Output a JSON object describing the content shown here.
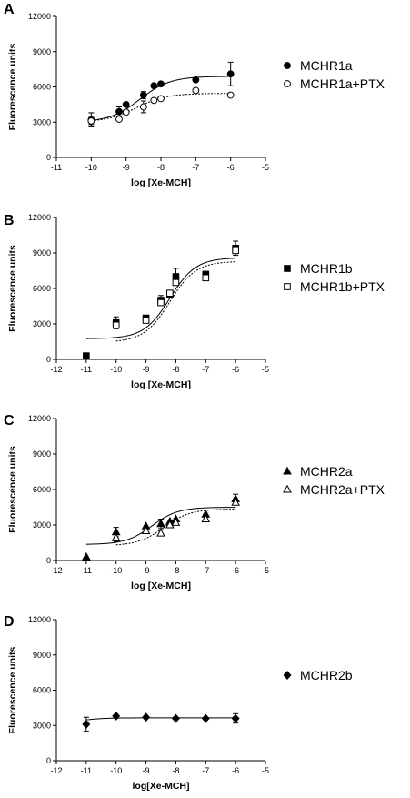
{
  "panels": [
    {
      "letter": "A",
      "chart_data": {
        "type": "scatter",
        "xlabel": "log [Xe-MCH]",
        "ylabel": "Fluorescence units",
        "xlim": [
          -11,
          -5
        ],
        "ylim": [
          0,
          12000
        ],
        "xticks": [
          -11,
          -10,
          -9,
          -8,
          -7,
          -6,
          -5
        ],
        "yticks": [
          0,
          3000,
          6000,
          9000,
          12000
        ],
        "grid": false,
        "legend_position": "right",
        "series": [
          {
            "name": "MCHR1a",
            "marker": "circle-filled",
            "line": "solid",
            "x": [
              -10,
              -9.2,
              -9,
              -8.5,
              -8.2,
              -8,
              -7,
              -6
            ],
            "y": [
              3200,
              3900,
              4500,
              5300,
              6100,
              6250,
              6600,
              7100
            ],
            "err": [
              600,
              400,
              0,
              300,
              0,
              0,
              0,
              1000
            ],
            "fit": {
              "bottom": 3000,
              "top": 6900,
              "logec50": -8.6
            }
          },
          {
            "name": "MCHR1a+PTX",
            "marker": "circle-open",
            "line": "dotted",
            "x": [
              -10,
              -9.2,
              -9,
              -8.5,
              -8.2,
              -8,
              -7,
              -6
            ],
            "y": [
              3100,
              3250,
              3850,
              4300,
              4850,
              5000,
              5700,
              5300
            ],
            "err": [
              300,
              0,
              0,
              500,
              0,
              0,
              0,
              0
            ],
            "fit": {
              "bottom": 3000,
              "top": 5450,
              "logec50": -8.7
            }
          }
        ]
      }
    },
    {
      "letter": "B",
      "chart_data": {
        "type": "scatter",
        "xlabel": "log [Xe-MCH]",
        "ylabel": "Fluorescence units",
        "xlim": [
          -12,
          -5
        ],
        "ylim": [
          0,
          12000
        ],
        "xticks": [
          -12,
          -11,
          -10,
          -9,
          -8,
          -7,
          -6,
          -5
        ],
        "yticks": [
          0,
          3000,
          6000,
          9000,
          12000
        ],
        "grid": false,
        "legend_position": "right",
        "series": [
          {
            "name": "MCHR1b",
            "marker": "square-filled",
            "line": "solid",
            "x": [
              -11,
              -10,
              -9,
              -8.5,
              -8.2,
              -8,
              -7,
              -6
            ],
            "y": [
              300,
              3100,
              3500,
              5000,
              5500,
              7000,
              7200,
              9400
            ],
            "err": [
              0,
              500,
              0,
              400,
              0,
              700,
              0,
              600
            ],
            "fit": {
              "bottom": 1750,
              "top": 8600,
              "logec50": -8.2
            }
          },
          {
            "name": "MCHR1b+PTX",
            "marker": "square-open",
            "line": "dotted",
            "x": [
              -10,
              -9,
              -8.5,
              -8.2,
              -8,
              -7,
              -6
            ],
            "y": [
              2900,
              3300,
              4800,
              5600,
              6500,
              6900,
              9200
            ],
            "err": [
              300,
              0,
              0,
              0,
              0,
              0,
              0
            ],
            "fit": {
              "bottom": 1450,
              "top": 8300,
              "logec50": -8.2
            }
          }
        ]
      }
    },
    {
      "letter": "C",
      "chart_data": {
        "type": "scatter",
        "xlabel": "log [Xe-MCH]",
        "ylabel": "Fluorescence units",
        "xlim": [
          -12,
          -5
        ],
        "ylim": [
          0,
          12000
        ],
        "xticks": [
          -12,
          -11,
          -10,
          -9,
          -8,
          -7,
          -6,
          -5
        ],
        "yticks": [
          0,
          3000,
          6000,
          9000,
          12000
        ],
        "grid": false,
        "legend_position": "right",
        "series": [
          {
            "name": "MCHR2a",
            "marker": "triangle-filled",
            "line": "solid",
            "x": [
              -11,
              -10,
              -9,
              -8.5,
              -8.2,
              -8,
              -7,
              -6
            ],
            "y": [
              300,
              2400,
              2900,
              3100,
              3300,
              3500,
              3900,
              5200
            ],
            "err": [
              0,
              400,
              0,
              400,
              0,
              0,
              0,
              400
            ],
            "fit": {
              "bottom": 1350,
              "top": 4500,
              "logec50": -8.8
            }
          },
          {
            "name": "MCHR2a+PTX",
            "marker": "triangle-open",
            "line": "dotted",
            "x": [
              -10,
              -9,
              -8.5,
              -8.2,
              -8,
              -7,
              -6
            ],
            "y": [
              1900,
              2500,
              2300,
              3000,
              3200,
              3500,
              4900
            ],
            "err": [
              300,
              0,
              0,
              0,
              0,
              0,
              0
            ],
            "fit": {
              "bottom": 1250,
              "top": 4350,
              "logec50": -8.4
            }
          }
        ]
      }
    },
    {
      "letter": "D",
      "chart_data": {
        "type": "scatter",
        "xlabel": "log[Xe-MCH]",
        "ylabel": "Fluorescence units",
        "xlim": [
          -12,
          -5
        ],
        "ylim": [
          0,
          12000
        ],
        "xticks": [
          -12,
          -11,
          -10,
          -9,
          -8,
          -7,
          -6,
          -5
        ],
        "yticks": [
          0,
          3000,
          6000,
          9000,
          12000
        ],
        "grid": false,
        "legend_position": "right",
        "series": [
          {
            "name": "MCHR2b",
            "marker": "diamond-filled",
            "line": "solid",
            "x": [
              -11,
              -10,
              -9,
              -8,
              -7,
              -6
            ],
            "y": [
              3100,
              3800,
              3700,
              3600,
              3600,
              3600
            ],
            "err": [
              600,
              0,
              0,
              0,
              0,
              400
            ],
            "fit": {
              "bottom": 2900,
              "top": 3650,
              "logec50": -11.5
            }
          }
        ]
      }
    }
  ]
}
